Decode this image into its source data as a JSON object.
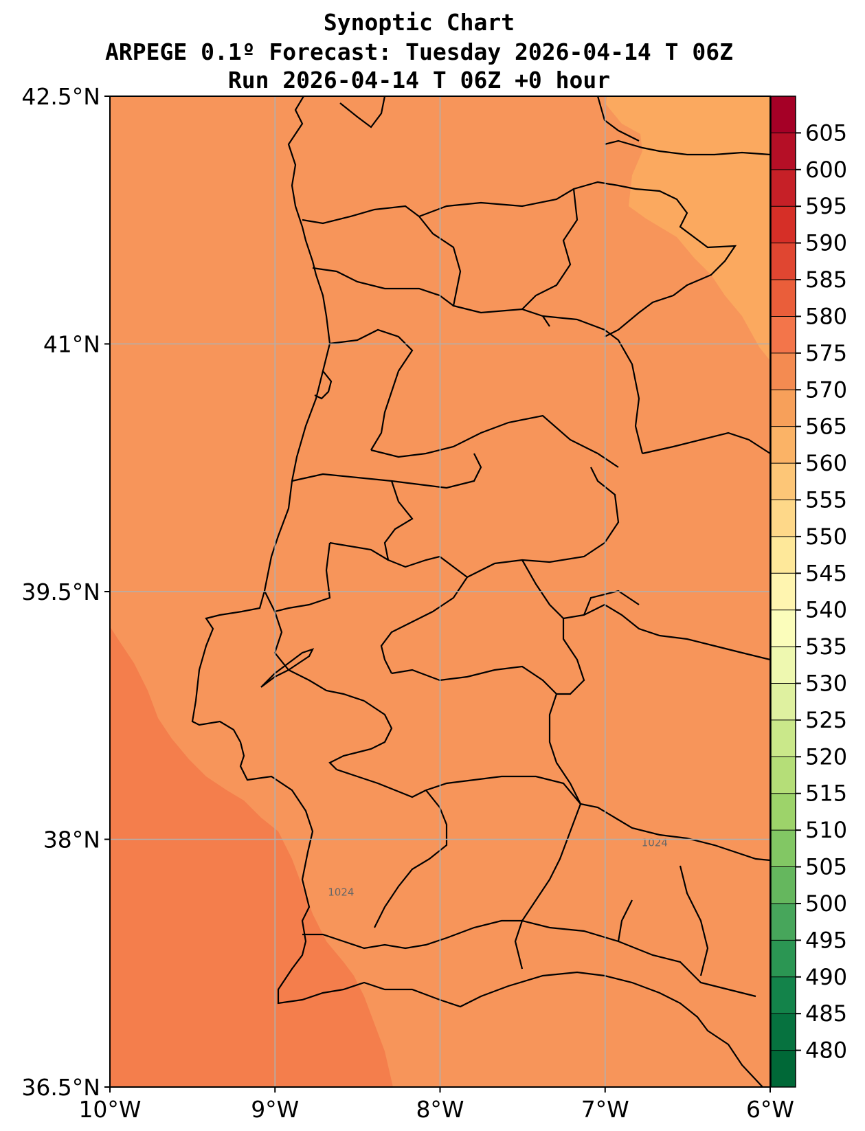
{
  "title": {
    "line1": "Synoptic Chart",
    "line2": "ARPEGE 0.1º Forecast: Tuesday 2026-04-14 T 06Z",
    "line3": "Run 2026-04-14 T 06Z +0 hour"
  },
  "axes": {
    "lon_ticks": [
      "10°W",
      "9°W",
      "8°W",
      "7°W",
      "6°W"
    ],
    "lat_ticks": [
      "42.5°N",
      "41°N",
      "39.5°N",
      "38°N",
      "36.5°N"
    ],
    "lon_range": [
      -10,
      -6
    ],
    "lat_range": [
      36.5,
      42.5
    ],
    "grid": true
  },
  "colorbar": {
    "ticks": [
      605,
      600,
      595,
      590,
      585,
      580,
      575,
      570,
      565,
      560,
      555,
      550,
      545,
      540,
      535,
      530,
      525,
      520,
      515,
      510,
      505,
      500,
      495,
      490,
      485,
      480
    ],
    "bands": [
      "#a50026",
      "#b50f26",
      "#c62027",
      "#d62f27",
      "#e04631",
      "#ea5e3a",
      "#f3754a",
      "#f48b51",
      "#f7a05a",
      "#fbb366",
      "#fdc677",
      "#fed889",
      "#fee89a",
      "#fff5b0",
      "#fbfdbb",
      "#eef8b0",
      "#dff1a0",
      "#cae88a",
      "#b5de78",
      "#9dd36a",
      "#82c764",
      "#65b75e",
      "#47a65b",
      "#2b9653",
      "#13834a",
      "#06723f",
      "#006837"
    ]
  },
  "field": {
    "dominant_color": "#f7955a",
    "sw_color": "#f47e4c",
    "ne_color": "#fba95f",
    "coast_color": "#000000"
  },
  "contour_labels": [
    {
      "text": "1024",
      "lon": -6.7,
      "lat": 38.0
    },
    {
      "text": "1024",
      "lon": -8.6,
      "lat": 37.7
    }
  ]
}
